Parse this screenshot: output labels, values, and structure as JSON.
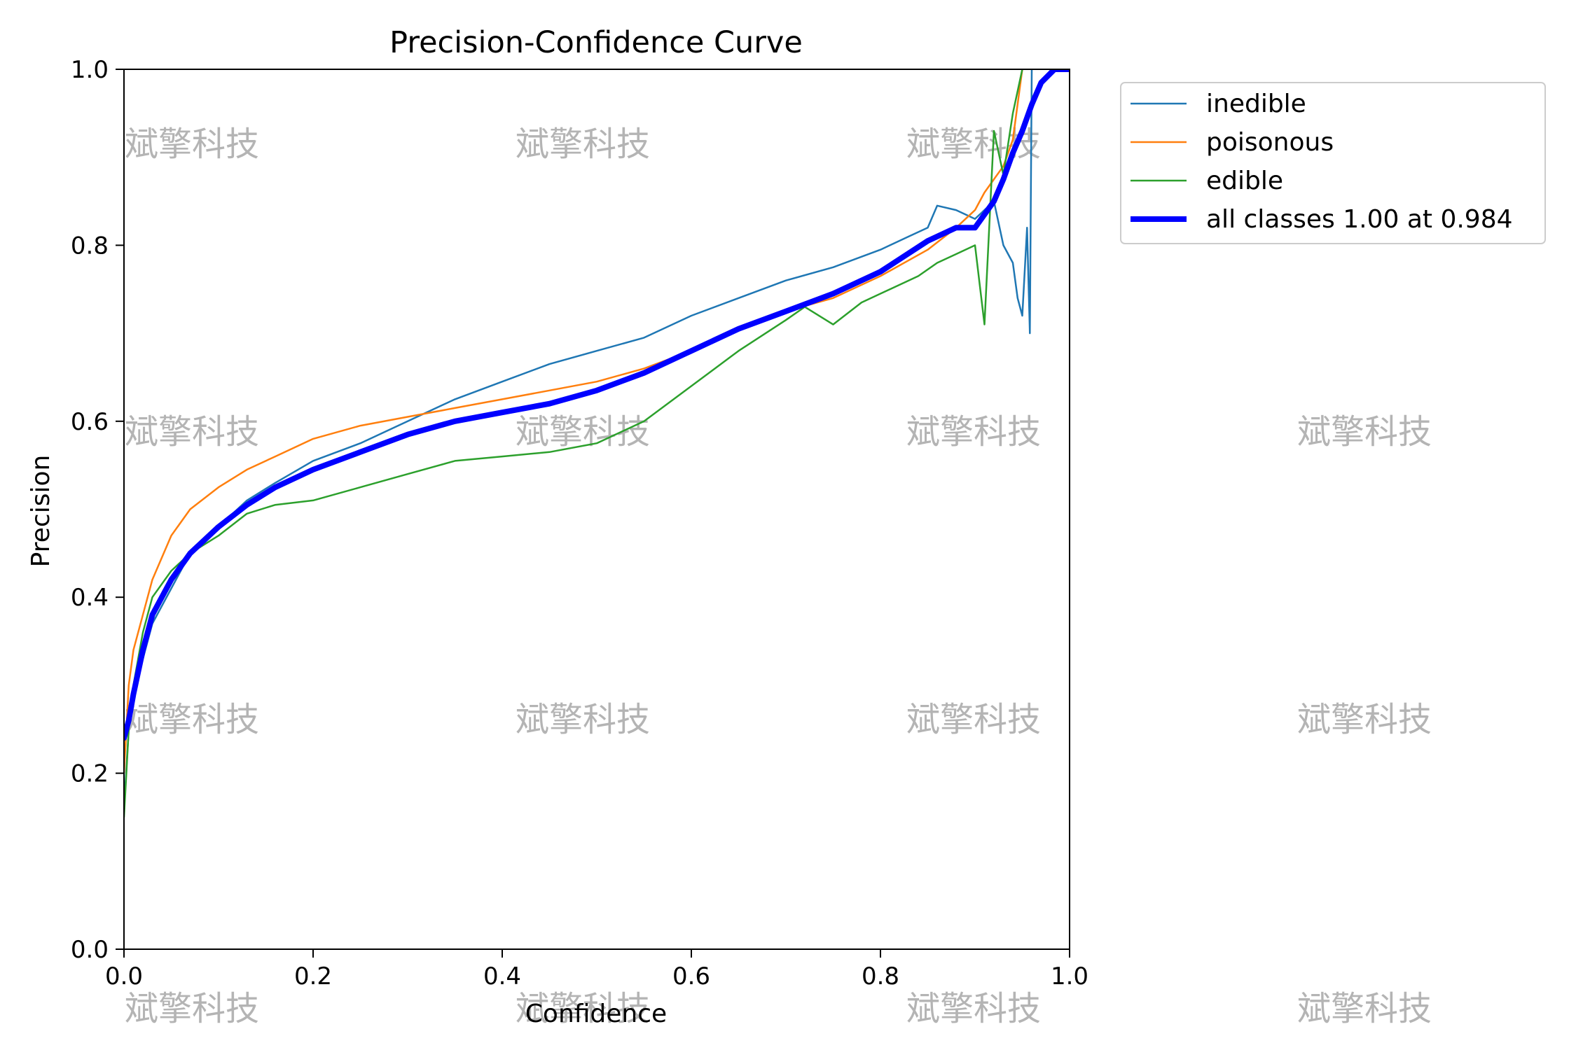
{
  "chart_data": {
    "type": "line",
    "title": "Precision-Confidence Curve",
    "xlabel": "Confidence",
    "ylabel": "Precision",
    "xlim": [
      0.0,
      1.0
    ],
    "ylim": [
      0.0,
      1.0
    ],
    "xticks": [
      "0.0",
      "0.2",
      "0.4",
      "0.6",
      "0.8",
      "1.0"
    ],
    "yticks": [
      "0.0",
      "0.2",
      "0.4",
      "0.6",
      "0.8",
      "1.0"
    ],
    "grid": false,
    "legend_position": "outside-top-right",
    "watermark": "斌擎科技",
    "series": [
      {
        "name": "inedible",
        "color": "#1f77b4",
        "width": 2.5,
        "x": [
          0.0,
          0.005,
          0.01,
          0.02,
          0.03,
          0.05,
          0.07,
          0.1,
          0.13,
          0.16,
          0.2,
          0.25,
          0.3,
          0.35,
          0.4,
          0.45,
          0.5,
          0.55,
          0.6,
          0.65,
          0.7,
          0.75,
          0.8,
          0.83,
          0.85,
          0.86,
          0.88,
          0.9,
          0.91,
          0.92,
          0.93,
          0.94,
          0.945,
          0.95,
          0.955,
          0.958,
          0.96
        ],
        "y": [
          0.16,
          0.25,
          0.29,
          0.33,
          0.37,
          0.41,
          0.45,
          0.48,
          0.51,
          0.53,
          0.555,
          0.575,
          0.6,
          0.625,
          0.645,
          0.665,
          0.68,
          0.695,
          0.72,
          0.74,
          0.76,
          0.775,
          0.795,
          0.81,
          0.82,
          0.845,
          0.84,
          0.83,
          0.84,
          0.85,
          0.8,
          0.78,
          0.74,
          0.72,
          0.82,
          0.7,
          1.0
        ]
      },
      {
        "name": "poisonous",
        "color": "#ff7f0e",
        "width": 2.5,
        "x": [
          0.0,
          0.005,
          0.01,
          0.02,
          0.03,
          0.05,
          0.07,
          0.1,
          0.13,
          0.16,
          0.2,
          0.25,
          0.3,
          0.35,
          0.4,
          0.45,
          0.5,
          0.55,
          0.6,
          0.65,
          0.7,
          0.75,
          0.8,
          0.85,
          0.88,
          0.9,
          0.91,
          0.92,
          0.93,
          0.94,
          0.95
        ],
        "y": [
          0.2,
          0.3,
          0.34,
          0.38,
          0.42,
          0.47,
          0.5,
          0.525,
          0.545,
          0.56,
          0.58,
          0.595,
          0.605,
          0.615,
          0.625,
          0.635,
          0.645,
          0.66,
          0.68,
          0.705,
          0.725,
          0.74,
          0.765,
          0.795,
          0.82,
          0.84,
          0.86,
          0.875,
          0.89,
          0.92,
          1.0
        ]
      },
      {
        "name": "edible",
        "color": "#2ca02c",
        "width": 2.5,
        "x": [
          0.0,
          0.005,
          0.01,
          0.02,
          0.03,
          0.05,
          0.07,
          0.1,
          0.13,
          0.16,
          0.2,
          0.25,
          0.3,
          0.35,
          0.4,
          0.45,
          0.5,
          0.55,
          0.6,
          0.65,
          0.7,
          0.72,
          0.75,
          0.78,
          0.8,
          0.84,
          0.86,
          0.88,
          0.9,
          0.91,
          0.92,
          0.93,
          0.94,
          0.95
        ],
        "y": [
          0.15,
          0.25,
          0.3,
          0.36,
          0.4,
          0.43,
          0.45,
          0.47,
          0.495,
          0.505,
          0.51,
          0.525,
          0.54,
          0.555,
          0.56,
          0.565,
          0.575,
          0.6,
          0.64,
          0.68,
          0.715,
          0.73,
          0.71,
          0.735,
          0.745,
          0.765,
          0.78,
          0.79,
          0.8,
          0.71,
          0.93,
          0.88,
          0.95,
          1.0
        ]
      },
      {
        "name": "all classes 1.00 at 0.984",
        "color": "#0000ff",
        "width": 8,
        "x": [
          0.0,
          0.005,
          0.01,
          0.02,
          0.03,
          0.05,
          0.07,
          0.1,
          0.13,
          0.16,
          0.2,
          0.25,
          0.3,
          0.35,
          0.4,
          0.45,
          0.5,
          0.55,
          0.6,
          0.65,
          0.7,
          0.75,
          0.8,
          0.85,
          0.88,
          0.9,
          0.91,
          0.92,
          0.93,
          0.94,
          0.95,
          0.96,
          0.97,
          0.984,
          1.0
        ],
        "y": [
          0.24,
          0.26,
          0.29,
          0.34,
          0.38,
          0.42,
          0.45,
          0.48,
          0.505,
          0.525,
          0.545,
          0.565,
          0.585,
          0.6,
          0.61,
          0.62,
          0.635,
          0.655,
          0.68,
          0.705,
          0.725,
          0.745,
          0.77,
          0.805,
          0.82,
          0.82,
          0.835,
          0.85,
          0.875,
          0.905,
          0.93,
          0.96,
          0.985,
          1.0,
          1.0
        ]
      }
    ]
  }
}
